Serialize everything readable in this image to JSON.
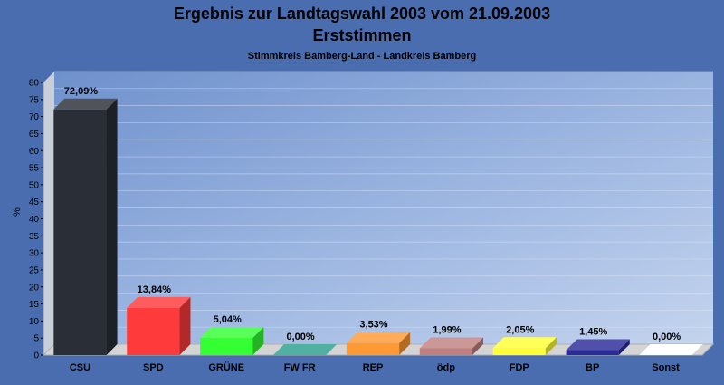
{
  "chart_data": {
    "type": "bar",
    "title": "Ergebnis zur Landtagswahl 2003 vom 21.09.2003",
    "subtitle": "Erststimmen",
    "subtitle2": "Stimmkreis Bamberg-Land - Landkreis Bamberg",
    "ylabel": "%",
    "ylim": [
      0,
      80
    ],
    "yticks": [
      "0",
      "5",
      "10",
      "15",
      "20",
      "25",
      "30",
      "35",
      "40",
      "45",
      "50",
      "55",
      "60",
      "65",
      "70",
      "75",
      "80"
    ],
    "grid": true,
    "categories": [
      "CSU",
      "SPD",
      "GRÜNE",
      "FW FR",
      "REP",
      "ödp",
      "FDP",
      "BP",
      "Sonst"
    ],
    "values": [
      72.09,
      13.84,
      5.04,
      0.0,
      3.53,
      1.99,
      2.05,
      1.45,
      0.0
    ],
    "value_labels": [
      "72,09%",
      "13,84%",
      "5,04%",
      "0,00%",
      "3,53%",
      "1,99%",
      "2,05%",
      "1,45%",
      "0,00%"
    ],
    "colors": [
      "#2a2e36",
      "#ff3a3a",
      "#33ff33",
      "#2aa08c",
      "#ff9933",
      "#c08080",
      "#ffff33",
      "#2a2a99",
      "#ffffff"
    ]
  }
}
